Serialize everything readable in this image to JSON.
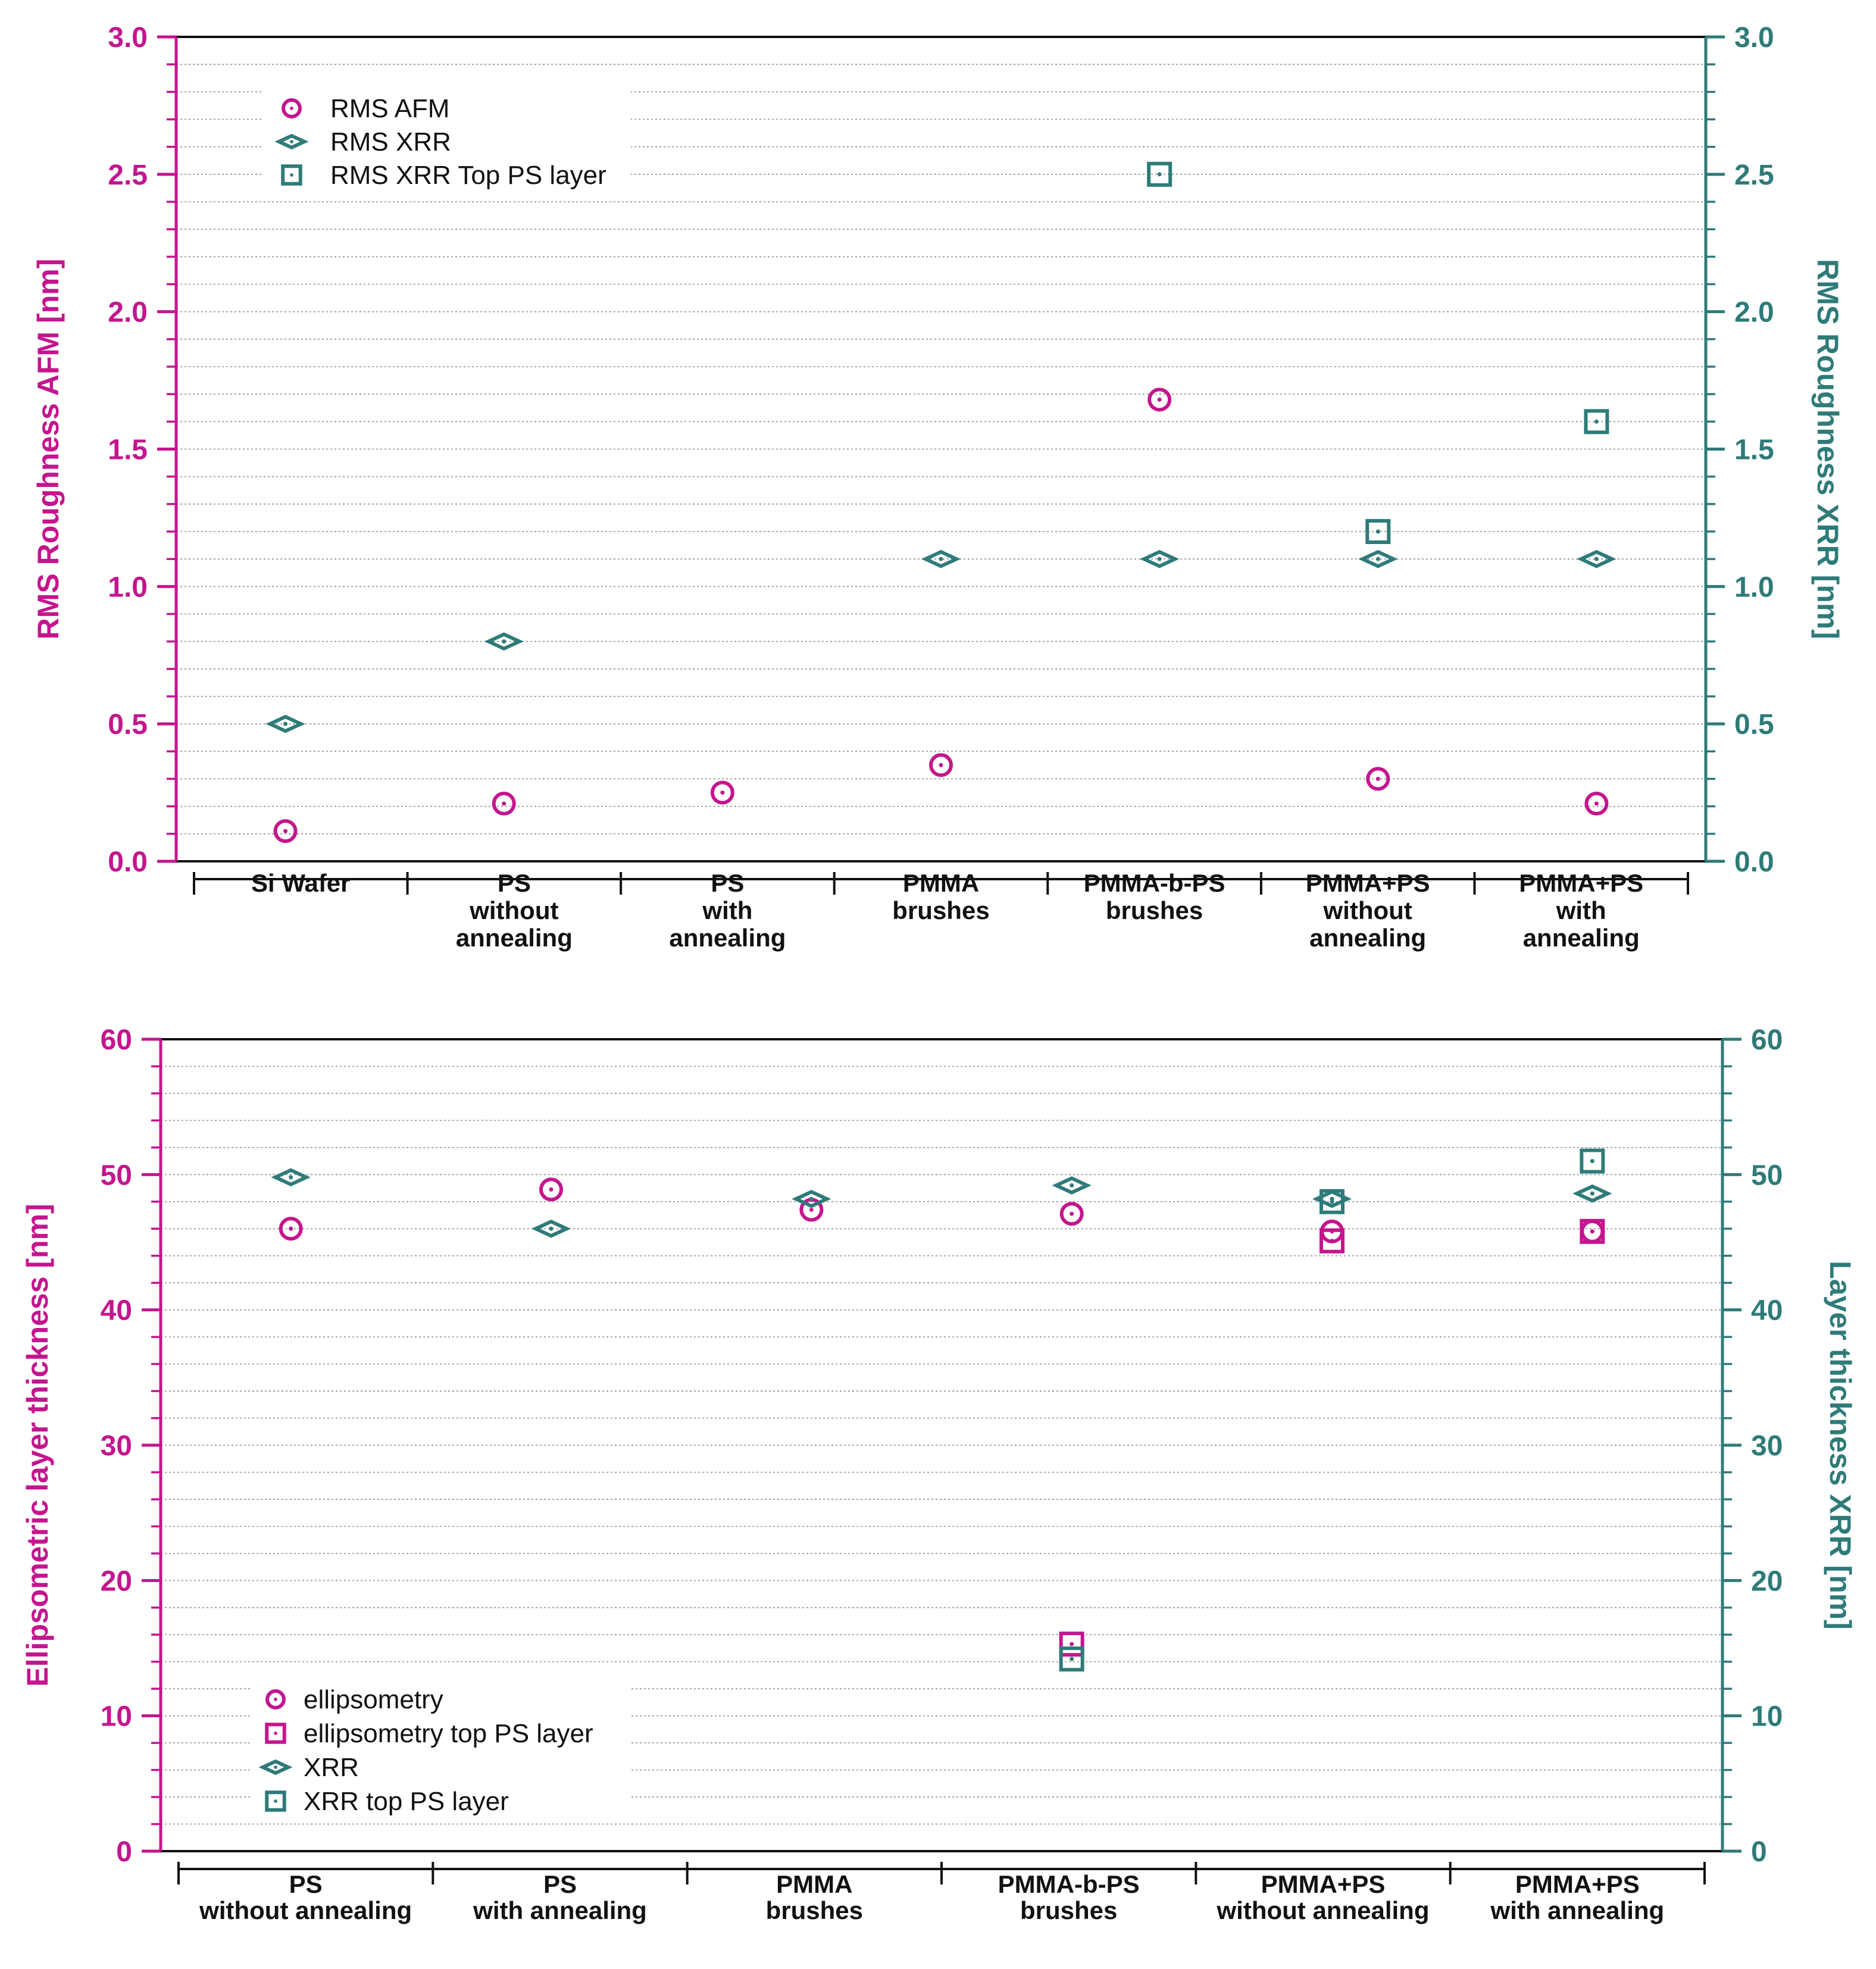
{
  "colors": {
    "magenta": "#C4158E",
    "teal": "#2E7B78",
    "grid": "#9a9a9a",
    "frame": "#111111"
  },
  "chart_data": [
    {
      "type": "scatter",
      "categories": [
        "Si Wafer",
        "PS\nwithout\nannealing",
        "PS\nwith\nannealing",
        "PMMA\nbrushes",
        "PMMA-b-PS\nbrushes",
        "PMMA+PS\nwithout\nannealing",
        "PMMA+PS\nwith\nannealing"
      ],
      "ylabel_left": "RMS Roughness AFM [nm]",
      "ylabel_right": "RMS Roughness XRR [nm]",
      "ylim": [
        0,
        3.0
      ],
      "yticks": [
        0.0,
        0.5,
        1.0,
        1.5,
        2.0,
        2.5,
        3.0
      ],
      "ytick_labels": [
        "0.0",
        "0.5",
        "1.0",
        "1.5",
        "2.0",
        "2.5",
        "3.0"
      ],
      "legend": {
        "position": "top-left",
        "entries": [
          "RMS AFM",
          "RMS XRR",
          "RMS XRR Top PS layer"
        ]
      },
      "series": [
        {
          "name": "RMS AFM",
          "marker": "circle",
          "color": "magenta",
          "values": [
            0.11,
            0.21,
            0.25,
            0.35,
            1.68,
            0.3,
            0.21
          ]
        },
        {
          "name": "RMS XRR",
          "marker": "diamond",
          "color": "teal",
          "values": [
            0.5,
            0.8,
            null,
            1.1,
            1.1,
            1.1,
            1.1
          ]
        },
        {
          "name": "RMS XRR Top PS layer",
          "marker": "square",
          "color": "teal",
          "values": [
            null,
            null,
            null,
            null,
            2.5,
            1.2,
            1.6
          ]
        }
      ]
    },
    {
      "type": "scatter",
      "categories": [
        "PS\nwithout annealing",
        "PS\nwith annealing",
        "PMMA\nbrushes",
        "PMMA-b-PS\nbrushes",
        "PMMA+PS\nwithout annealing",
        "PMMA+PS\nwith annealing"
      ],
      "ylabel_left": "Ellipsometric layer thickness [nm]",
      "ylabel_right": "Layer thickness XRR [nm]",
      "ylim": [
        0,
        60
      ],
      "yticks": [
        0,
        10,
        20,
        30,
        40,
        50,
        60
      ],
      "ytick_labels": [
        "0",
        "10",
        "20",
        "30",
        "40",
        "50",
        "60"
      ],
      "legend": {
        "position": "bottom-left",
        "entries": [
          "ellipsometry",
          "ellipsometry top PS layer",
          "XRR",
          "XRR top PS layer"
        ]
      },
      "series": [
        {
          "name": "ellipsometry",
          "marker": "circle",
          "color": "magenta",
          "values": [
            46.0,
            48.9,
            47.4,
            47.1,
            45.8,
            45.8
          ]
        },
        {
          "name": "ellipsometry top PS layer",
          "marker": "square",
          "color": "magenta",
          "values": [
            null,
            null,
            null,
            15.3,
            45.1,
            45.8
          ]
        },
        {
          "name": "XRR",
          "marker": "diamond",
          "color": "teal",
          "values": [
            49.8,
            46.0,
            48.2,
            49.2,
            48.2,
            48.6
          ]
        },
        {
          "name": "XRR top PS layer",
          "marker": "square",
          "color": "teal",
          "values": [
            null,
            null,
            null,
            14.2,
            48.0,
            51.0
          ]
        }
      ]
    }
  ]
}
